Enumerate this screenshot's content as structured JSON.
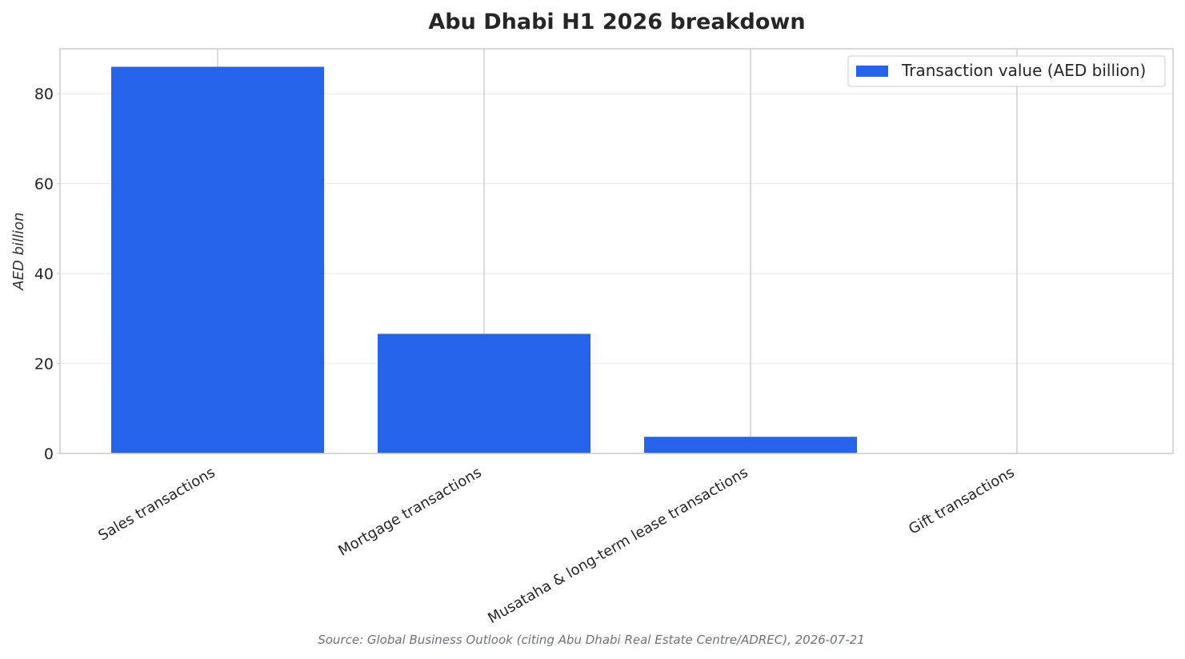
{
  "chart_data": {
    "type": "bar",
    "title": "Abu Dhabi H1 2026 breakdown",
    "ylabel": "AED billion",
    "xlabel": "",
    "categories": [
      "Sales transactions",
      "Mortgage transactions",
      "Musataha & long-term lease transactions",
      "Gift transactions"
    ],
    "series": [
      {
        "name": "Transaction value (AED billion)",
        "values": [
          86.0,
          26.6,
          3.7,
          0.0
        ],
        "color": "#2563eb"
      }
    ],
    "ylim": [
      0,
      90
    ],
    "yticks": [
      0,
      20,
      40,
      60,
      80
    ],
    "grid": true,
    "legend_position": "top-right",
    "source": "Source: Global Business Outlook (citing Abu Dhabi Real Estate Centre/ADREC), 2026-07-21"
  }
}
